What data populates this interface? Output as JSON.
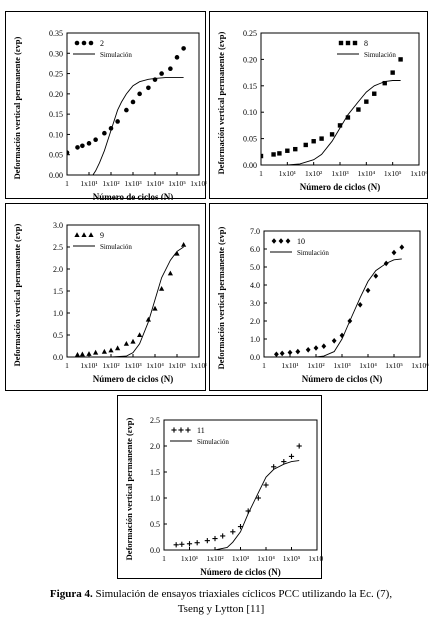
{
  "figure": {
    "caption_label": "Figura 4.",
    "caption_line1": " Simulación de ensayos triaxiales cíclicos PCC utilizando la Ec. (7),",
    "caption_line2": "Tseng y Lytton [11]"
  },
  "chart_data": [
    {
      "type": "scatter",
      "xlabel": "Número de ciclos (N)",
      "ylabel": "Deformación vertical permanente (εvp)",
      "xscale": "log",
      "xticks": [
        "1",
        "1x10¹",
        "1x10²",
        "1x10³",
        "1x10⁴",
        "1x10⁵",
        "1x10⁶"
      ],
      "ylim": [
        0.0,
        0.35
      ],
      "yticks": [
        "0.00",
        "0.05",
        "0.10",
        "0.15",
        "0.20",
        "0.25",
        "0.30",
        "0.35"
      ],
      "legend_position": "top-left",
      "marker": "circle",
      "series": [
        {
          "name": "2",
          "kind": "points",
          "x": [
            1,
            3,
            5,
            10,
            20,
            50,
            100,
            200,
            500,
            1000,
            2000,
            5000,
            10000,
            20000,
            50000,
            100000,
            200000
          ],
          "y": [
            0.055,
            0.068,
            0.072,
            0.078,
            0.087,
            0.103,
            0.115,
            0.132,
            0.16,
            0.18,
            0.2,
            0.215,
            0.235,
            0.25,
            0.262,
            0.29,
            0.312
          ]
        },
        {
          "name": "Simulación",
          "kind": "line",
          "x": [
            15,
            20,
            30,
            50,
            100,
            200,
            300,
            500,
            1000,
            2000,
            5000,
            10000,
            30000,
            100000,
            200000
          ],
          "y": [
            0.0,
            0.01,
            0.03,
            0.06,
            0.11,
            0.16,
            0.18,
            0.2,
            0.22,
            0.23,
            0.236,
            0.238,
            0.24,
            0.24,
            0.24
          ]
        }
      ]
    },
    {
      "type": "scatter",
      "xlabel": "Número de ciclos (N)",
      "ylabel": "Deformación vertical permanente (εvp)",
      "xscale": "log",
      "xticks": [
        "1",
        "1x10¹",
        "1x10²",
        "1x10³",
        "1x10⁴",
        "1x10⁵",
        "1x10⁶"
      ],
      "ylim": [
        0.0,
        0.25
      ],
      "yticks": [
        "0.00",
        "0.05",
        "0.10",
        "0.15",
        "0.20",
        "0.25"
      ],
      "legend_position": "top-right",
      "marker": "square",
      "series": [
        {
          "name": "8",
          "kind": "points",
          "x": [
            1,
            3,
            5,
            10,
            20,
            50,
            100,
            200,
            500,
            1000,
            2000,
            5000,
            10000,
            20000,
            50000,
            100000,
            200000
          ],
          "y": [
            0.017,
            0.02,
            0.022,
            0.027,
            0.03,
            0.038,
            0.045,
            0.05,
            0.058,
            0.075,
            0.09,
            0.105,
            0.12,
            0.135,
            0.155,
            0.175,
            0.2
          ]
        },
        {
          "name": "Simulación",
          "kind": "line",
          "x": [
            1,
            10,
            30,
            100,
            200,
            500,
            1000,
            2000,
            5000,
            10000,
            20000,
            50000,
            100000,
            200000
          ],
          "y": [
            0.0,
            0.0,
            0.002,
            0.01,
            0.02,
            0.045,
            0.07,
            0.095,
            0.12,
            0.138,
            0.15,
            0.158,
            0.16,
            0.16
          ]
        }
      ]
    },
    {
      "type": "scatter",
      "xlabel": "Número de ciclos (N)",
      "ylabel": "Deformación vertical permanente (εvp)",
      "xscale": "log",
      "xticks": [
        "1",
        "1x10¹",
        "1x10²",
        "1x10³",
        "1x10⁴",
        "1x10⁵",
        "1x10⁶"
      ],
      "ylim": [
        0.0,
        3.0
      ],
      "yticks": [
        "0.0",
        "0.5",
        "1.0",
        "1.5",
        "2.0",
        "2.5",
        "3.0"
      ],
      "legend_position": "top-left",
      "marker": "triangle",
      "series": [
        {
          "name": "9",
          "kind": "points",
          "x": [
            3,
            5,
            10,
            20,
            50,
            100,
            200,
            500,
            1000,
            2000,
            5000,
            10000,
            20000,
            50000,
            100000,
            200000
          ],
          "y": [
            0.05,
            0.06,
            0.07,
            0.1,
            0.12,
            0.15,
            0.2,
            0.3,
            0.35,
            0.5,
            0.85,
            1.1,
            1.55,
            1.9,
            2.35,
            2.55
          ]
        },
        {
          "name": "Simulación",
          "kind": "line",
          "x": [
            1,
            100,
            500,
            1000,
            2000,
            5000,
            10000,
            20000,
            50000,
            100000,
            200000
          ],
          "y": [
            0.0,
            0.0,
            0.02,
            0.1,
            0.3,
            0.8,
            1.3,
            1.8,
            2.2,
            2.4,
            2.5
          ]
        }
      ]
    },
    {
      "type": "scatter",
      "xlabel": "Número de ciclos (N)",
      "ylabel": "Deformación vertical permanente (εvp)",
      "xscale": "log",
      "xticks": [
        "1",
        "1x10¹",
        "1x10²",
        "1x10³",
        "1x10⁴",
        "1x10⁵",
        "1x10⁶"
      ],
      "ylim": [
        0.0,
        7.0
      ],
      "yticks": [
        "0.0",
        "1.0",
        "2.0",
        "3.0",
        "4.0",
        "5.0",
        "6.0",
        "7.0"
      ],
      "legend_position": "top-left",
      "marker": "diamond",
      "series": [
        {
          "name": "10",
          "kind": "points",
          "x": [
            3,
            5,
            10,
            20,
            50,
            100,
            200,
            500,
            1000,
            2000,
            5000,
            10000,
            20000,
            50000,
            100000,
            200000
          ],
          "y": [
            0.15,
            0.2,
            0.25,
            0.3,
            0.4,
            0.5,
            0.6,
            0.9,
            1.2,
            2.0,
            2.9,
            3.7,
            4.5,
            5.2,
            5.8,
            6.1
          ]
        },
        {
          "name": "Simulación",
          "kind": "line",
          "x": [
            1,
            100,
            200,
            500,
            1000,
            2000,
            5000,
            10000,
            20000,
            50000,
            100000,
            200000
          ],
          "y": [
            0.0,
            0.0,
            0.05,
            0.3,
            1.0,
            2.0,
            3.3,
            4.2,
            4.8,
            5.2,
            5.4,
            5.45
          ]
        }
      ]
    },
    {
      "type": "scatter",
      "xlabel": "Número de ciclos (N)",
      "ylabel": "Deformación vertical permanente (εvp)",
      "xscale": "log",
      "xticks": [
        "1",
        "1x10¹",
        "1x10²",
        "1x10³",
        "1x10⁴",
        "1x10⁵",
        "1x10⁶"
      ],
      "ylim": [
        0.0,
        2.5
      ],
      "yticks": [
        "0.0",
        "0.5",
        "1.0",
        "1.5",
        "2.0",
        "2.5"
      ],
      "legend_position": "top-left",
      "marker": "plus",
      "series": [
        {
          "name": "11",
          "kind": "points",
          "x": [
            3,
            5,
            10,
            20,
            50,
            100,
            200,
            500,
            1000,
            2000,
            5000,
            10000,
            20000,
            50000,
            100000,
            200000
          ],
          "y": [
            0.1,
            0.11,
            0.12,
            0.14,
            0.18,
            0.22,
            0.27,
            0.35,
            0.45,
            0.75,
            1.0,
            1.25,
            1.6,
            1.7,
            1.8,
            2.0
          ]
        },
        {
          "name": "Simulación",
          "kind": "line",
          "x": [
            1,
            100,
            300,
            500,
            1000,
            2000,
            5000,
            10000,
            20000,
            50000,
            100000,
            200000
          ],
          "y": [
            0.0,
            0.0,
            0.05,
            0.15,
            0.35,
            0.7,
            1.1,
            1.4,
            1.55,
            1.65,
            1.7,
            1.72
          ]
        }
      ]
    }
  ]
}
